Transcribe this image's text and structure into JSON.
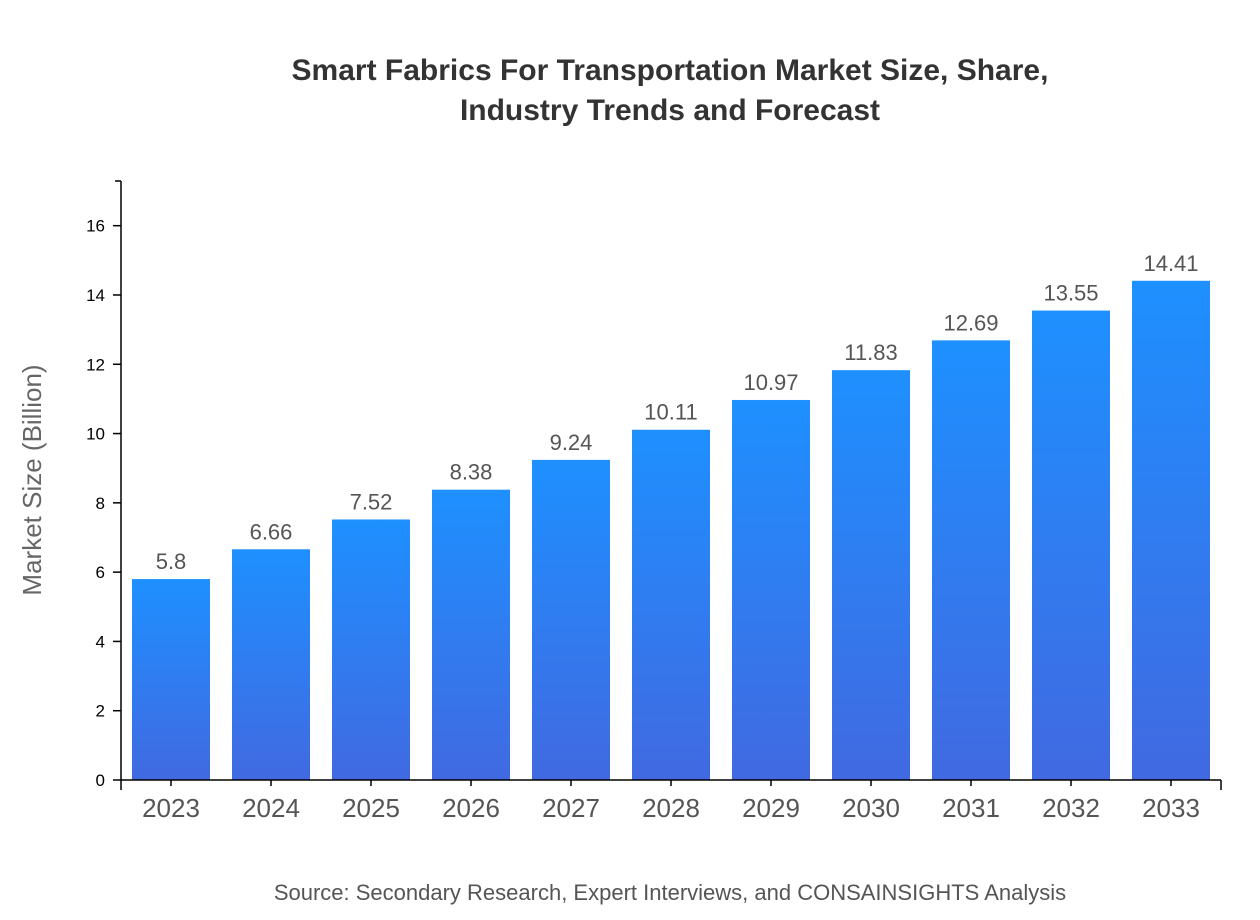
{
  "chart_data": {
    "type": "bar",
    "title_lines": [
      "Smart Fabrics For Transportation Market Size, Share,",
      "Industry Trends and Forecast"
    ],
    "xlabel": "",
    "ylabel": "Market Size (Billion)",
    "categories": [
      "2023",
      "2024",
      "2025",
      "2026",
      "2027",
      "2028",
      "2029",
      "2030",
      "2031",
      "2032",
      "2033"
    ],
    "values": [
      5.8,
      6.66,
      7.52,
      8.38,
      9.24,
      10.11,
      10.97,
      11.83,
      12.69,
      13.55,
      14.41
    ],
    "ylim": [
      0,
      17.29
    ],
    "yticks": [
      0,
      2,
      4,
      6,
      8,
      10,
      12,
      14,
      16
    ],
    "grid": false,
    "legend": "none",
    "colors": {
      "bar_top": "#1e90ff",
      "bar_bottom": "#4169e1"
    },
    "source": "Source: Secondary Research, Expert Interviews, and CONSAINSIGHTS Analysis"
  }
}
